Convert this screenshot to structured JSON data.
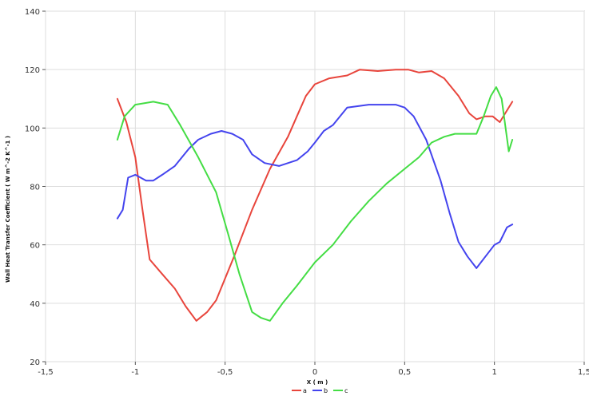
{
  "chart_data": {
    "type": "line",
    "xlabel": "X ( m )",
    "ylabel": "Wall Heat Transfer Coefficient ( W m^-2 K^-1 )",
    "xlim": [
      -1.5,
      1.5
    ],
    "ylim": [
      20,
      140
    ],
    "x_ticks": [
      -1.5,
      -1,
      -0.5,
      0,
      0.5,
      1,
      1.5
    ],
    "x_tick_labels": [
      "-1,5",
      "-1",
      "-0,5",
      "0",
      "0,5",
      "1",
      "1,5"
    ],
    "y_ticks": [
      20,
      40,
      60,
      80,
      100,
      120,
      140
    ],
    "y_tick_labels": [
      "20",
      "40",
      "60",
      "80",
      "100",
      "120",
      "140"
    ],
    "grid": true,
    "legend_position": "bottom",
    "series": [
      {
        "name": "a",
        "color": "#e8453c",
        "points": [
          [
            -1.1,
            110
          ],
          [
            -1.05,
            102
          ],
          [
            -1.0,
            90
          ],
          [
            -0.96,
            72
          ],
          [
            -0.92,
            55
          ],
          [
            -0.85,
            50
          ],
          [
            -0.78,
            45
          ],
          [
            -0.72,
            39
          ],
          [
            -0.66,
            34
          ],
          [
            -0.6,
            37
          ],
          [
            -0.55,
            41
          ],
          [
            -0.45,
            56
          ],
          [
            -0.35,
            72
          ],
          [
            -0.25,
            86
          ],
          [
            -0.15,
            97
          ],
          [
            -0.1,
            104
          ],
          [
            -0.05,
            111
          ],
          [
            0.0,
            115
          ],
          [
            0.08,
            117
          ],
          [
            0.18,
            118
          ],
          [
            0.25,
            120
          ],
          [
            0.35,
            119.5
          ],
          [
            0.45,
            120
          ],
          [
            0.52,
            120
          ],
          [
            0.58,
            119
          ],
          [
            0.65,
            119.5
          ],
          [
            0.72,
            117
          ],
          [
            0.8,
            111
          ],
          [
            0.86,
            105
          ],
          [
            0.9,
            103
          ],
          [
            0.95,
            104
          ],
          [
            0.99,
            104
          ],
          [
            1.03,
            102
          ],
          [
            1.06,
            105
          ],
          [
            1.1,
            109
          ]
        ]
      },
      {
        "name": "b",
        "color": "#4444ee",
        "points": [
          [
            -1.1,
            69
          ],
          [
            -1.07,
            72
          ],
          [
            -1.04,
            83
          ],
          [
            -1.0,
            84
          ],
          [
            -0.94,
            82
          ],
          [
            -0.9,
            82
          ],
          [
            -0.85,
            84
          ],
          [
            -0.78,
            87
          ],
          [
            -0.7,
            93
          ],
          [
            -0.65,
            96
          ],
          [
            -0.58,
            98
          ],
          [
            -0.52,
            99
          ],
          [
            -0.46,
            98
          ],
          [
            -0.4,
            96
          ],
          [
            -0.35,
            91
          ],
          [
            -0.28,
            88
          ],
          [
            -0.2,
            87
          ],
          [
            -0.1,
            89
          ],
          [
            -0.04,
            92
          ],
          [
            0.0,
            95
          ],
          [
            0.05,
            99
          ],
          [
            0.1,
            101
          ],
          [
            0.18,
            107
          ],
          [
            0.3,
            108
          ],
          [
            0.45,
            108
          ],
          [
            0.5,
            107
          ],
          [
            0.55,
            104
          ],
          [
            0.62,
            96
          ],
          [
            0.7,
            82
          ],
          [
            0.75,
            71
          ],
          [
            0.8,
            61
          ],
          [
            0.85,
            56
          ],
          [
            0.9,
            52
          ],
          [
            0.95,
            56
          ],
          [
            1.0,
            60
          ],
          [
            1.03,
            61
          ],
          [
            1.07,
            66
          ],
          [
            1.1,
            67
          ]
        ]
      },
      {
        "name": "c",
        "color": "#44dd44",
        "points": [
          [
            -1.1,
            96
          ],
          [
            -1.06,
            104
          ],
          [
            -1.0,
            108
          ],
          [
            -0.9,
            109
          ],
          [
            -0.82,
            108
          ],
          [
            -0.75,
            101
          ],
          [
            -0.65,
            90
          ],
          [
            -0.55,
            78
          ],
          [
            -0.48,
            63
          ],
          [
            -0.42,
            50
          ],
          [
            -0.35,
            37
          ],
          [
            -0.3,
            35
          ],
          [
            -0.25,
            34
          ],
          [
            -0.18,
            40
          ],
          [
            -0.1,
            46
          ],
          [
            0.0,
            54
          ],
          [
            0.1,
            60
          ],
          [
            0.2,
            68
          ],
          [
            0.3,
            75
          ],
          [
            0.4,
            81
          ],
          [
            0.5,
            86
          ],
          [
            0.58,
            90
          ],
          [
            0.65,
            95
          ],
          [
            0.72,
            97
          ],
          [
            0.78,
            98
          ],
          [
            0.85,
            98
          ],
          [
            0.9,
            98
          ],
          [
            0.94,
            104
          ],
          [
            0.98,
            111
          ],
          [
            1.01,
            114
          ],
          [
            1.04,
            110
          ],
          [
            1.08,
            92
          ],
          [
            1.1,
            96
          ]
        ]
      }
    ]
  }
}
